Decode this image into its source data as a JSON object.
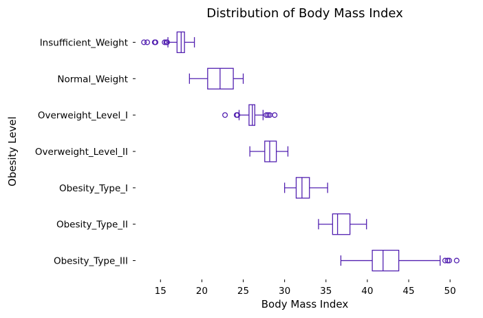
{
  "chart_data": {
    "type": "boxplot",
    "orientation": "horizontal",
    "title": "Distribution of Body Mass Index",
    "xlabel": "Body Mass Index",
    "ylabel": "Obesity Level",
    "xlim": [
      12.4,
      52.4
    ],
    "xticks": [
      15,
      20,
      25,
      30,
      35,
      40,
      45,
      50
    ],
    "grid": false,
    "color": "#5220b0",
    "categories": [
      "Insufficient_Weight",
      "Normal_Weight",
      "Overweight_Level_I",
      "Overweight_Level_II",
      "Obesity_Type_I",
      "Obesity_Type_II",
      "Obesity_Type_III"
    ],
    "boxes": [
      {
        "category": "Insufficient_Weight",
        "whisker_low": 15.9,
        "q1": 17.0,
        "median": 17.5,
        "q3": 17.9,
        "whisker_high": 19.1,
        "outliers": [
          13.0,
          13.4,
          14.3,
          14.4,
          15.5,
          15.7,
          15.8
        ]
      },
      {
        "category": "Normal_Weight",
        "whisker_low": 18.5,
        "q1": 20.7,
        "median": 22.2,
        "q3": 23.8,
        "whisker_high": 25.0,
        "outliers": []
      },
      {
        "category": "Overweight_Level_I",
        "whisker_low": 24.5,
        "q1": 25.7,
        "median": 26.1,
        "q3": 26.4,
        "whisker_high": 27.4,
        "outliers": [
          22.8,
          24.2,
          24.3,
          27.8,
          28.0,
          28.2,
          28.8
        ]
      },
      {
        "category": "Overweight_Level_II",
        "whisker_low": 25.8,
        "q1": 27.6,
        "median": 28.2,
        "q3": 29.0,
        "whisker_high": 30.4,
        "outliers": []
      },
      {
        "category": "Obesity_Type_I",
        "whisker_low": 30.0,
        "q1": 31.4,
        "median": 32.1,
        "q3": 33.0,
        "whisker_high": 35.2,
        "outliers": []
      },
      {
        "category": "Obesity_Type_II",
        "whisker_low": 34.1,
        "q1": 35.8,
        "median": 36.4,
        "q3": 37.9,
        "whisker_high": 39.9,
        "outliers": []
      },
      {
        "category": "Obesity_Type_III",
        "whisker_low": 36.8,
        "q1": 40.6,
        "median": 41.9,
        "q3": 43.8,
        "whisker_high": 48.8,
        "outliers": [
          49.4,
          49.7,
          49.9,
          50.8
        ]
      }
    ]
  }
}
